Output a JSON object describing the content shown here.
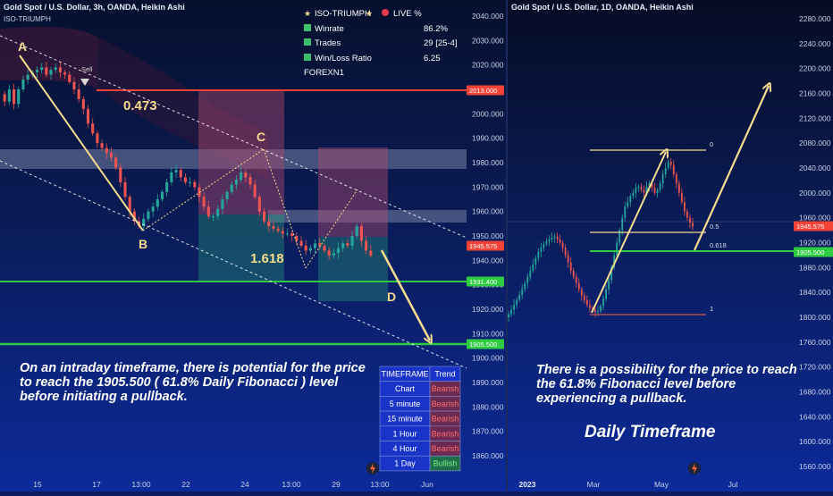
{
  "left": {
    "title": "Gold Spot / U.S. Dollar, 3h, OANDA, Heikin Ashi",
    "indicator": "ISO-TRIUMPH",
    "price_ticks": [
      "2040.000",
      "2030.000",
      "2020.000",
      "2010.000",
      "2000.000",
      "1990.000",
      "1980.000",
      "1970.000",
      "1960.000",
      "1950.000",
      "1940.000",
      "1930.000",
      "1920.000",
      "1910.000",
      "1900.000",
      "1890.000",
      "1880.000",
      "1870.000",
      "1860.000"
    ],
    "date_ticks": [
      "15",
      "17",
      "13:00",
      "22",
      "24",
      "13:00",
      "29",
      "13:00",
      "Jun"
    ],
    "level_tags": [
      {
        "label": "2013.000",
        "color": "#f44336"
      },
      {
        "label": "1945.575",
        "color": "#f44336"
      },
      {
        "label": "1931.400",
        "color": "#2ecc40"
      },
      {
        "label": "1905.500",
        "color": "#2ecc40"
      }
    ],
    "point_labels": [
      "A",
      "B",
      "C",
      "D"
    ],
    "sell_label": "Sell",
    "ratio_upper": "0.473",
    "ratio_lower": "1.618",
    "stats": {
      "header_name": "ISO-TRIUMPH",
      "header_live": "LIVE %",
      "rows": [
        {
          "label": "Winrate",
          "value": "86.2%"
        },
        {
          "label": "Trades",
          "value": "29 [25-4]"
        },
        {
          "label": "Win/Loss Ratio",
          "value": "6.25"
        }
      ],
      "symbol": "FOREXN1"
    },
    "note_lines": [
      "On an intraday timeframe, there is potential for the price",
      "to reach the 1905.500 ( 61.8% Daily Fibonacci  )  level",
      "before initiating a pullback."
    ],
    "trend_table": {
      "headers": [
        "TIMEFRAME",
        "Trend"
      ],
      "rows": [
        {
          "tf": "Chart",
          "trend": "Bearish"
        },
        {
          "tf": "5 minute",
          "trend": "Bearish"
        },
        {
          "tf": "15 minute",
          "trend": "Bearish"
        },
        {
          "tf": "1 Hour",
          "trend": "Bearish"
        },
        {
          "tf": "4 Hour",
          "trend": "Bearish"
        },
        {
          "tf": "1 Day",
          "trend": "Bullish"
        }
      ]
    }
  },
  "right": {
    "title": "Gold Spot / U.S. Dollar, 1D, OANDA, Heikin Ashi",
    "price_ticks": [
      "2280.000",
      "2240.000",
      "2200.000",
      "2160.000",
      "2120.000",
      "2080.000",
      "2040.000",
      "2000.000",
      "1960.000",
      "1920.000",
      "1880.000",
      "1840.000",
      "1800.000",
      "1760.000",
      "1720.000",
      "1680.000",
      "1640.000",
      "1600.000",
      "1560.000"
    ],
    "date_ticks": [
      "2023",
      "Mar",
      "May",
      "Jul"
    ],
    "level_tags": [
      {
        "label": "1945.575",
        "color": "#f44336"
      },
      {
        "label": "1905.500",
        "color": "#2ecc40"
      }
    ],
    "fib_labels": [
      "0",
      "0.5",
      "0.618",
      "1"
    ],
    "note_lines": [
      "There is a possibility for the price to reach",
      "the 61.8% Fibonacci level before",
      "experiencing a pullback."
    ],
    "caption": "Daily Timeframe"
  },
  "chart_data": [
    {
      "type": "candlestick",
      "title": "Gold Spot / U.S. Dollar, 3h, OANDA, Heikin Ashi",
      "ylim": [
        1855,
        2042
      ],
      "levels": [
        2013.0,
        1945.575,
        1931.4,
        1905.5
      ],
      "swing_points": [
        {
          "label": "A",
          "price": 2025
        },
        {
          "label": "B",
          "price": 1953
        },
        {
          "label": "C",
          "price": 1986
        },
        {
          "label": "D",
          "price": 1905.5
        }
      ],
      "close_path": [
        2008,
        2005,
        2010,
        2004,
        2010,
        2014,
        2016,
        2017,
        2018,
        2019,
        2016,
        2018,
        2019,
        2017,
        2016,
        2013,
        2010,
        2006,
        2002,
        1996,
        1992,
        1988,
        1986,
        1984,
        1982,
        1978,
        1972,
        1966,
        1960,
        1956,
        1954,
        1957,
        1960,
        1962,
        1965,
        1968,
        1972,
        1976,
        1977,
        1974,
        1972,
        1972,
        1970,
        1966,
        1962,
        1958,
        1958,
        1961,
        1965,
        1968,
        1971,
        1973,
        1976,
        1974,
        1971,
        1966,
        1960,
        1956,
        1954,
        1953,
        1952,
        1951,
        1951,
        1950,
        1948,
        1946,
        1944,
        1945,
        1947,
        1946,
        1944,
        1942,
        1943,
        1945,
        1947,
        1946,
        1950,
        1954,
        1948,
        1944,
        1942
      ]
    },
    {
      "type": "candlestick",
      "title": "Gold Spot / U.S. Dollar, 1D, OANDA, Heikin Ashi",
      "ylim": [
        1550,
        2300
      ],
      "levels": [
        1945.575,
        1905.5
      ],
      "fib_levels": [
        {
          "label": "0",
          "price": 2067
        },
        {
          "label": "0.5",
          "price": 1936
        },
        {
          "label": "0.618",
          "price": 1905.5
        },
        {
          "label": "1",
          "price": 1805
        }
      ],
      "close_path": [
        1800,
        1805,
        1812,
        1820,
        1828,
        1836,
        1845,
        1855,
        1865,
        1875,
        1885,
        1895,
        1905,
        1912,
        1918,
        1922,
        1925,
        1928,
        1930,
        1925,
        1920,
        1912,
        1900,
        1888,
        1875,
        1865,
        1855,
        1845,
        1835,
        1828,
        1820,
        1815,
        1812,
        1808,
        1810,
        1818,
        1830,
        1845,
        1860,
        1880,
        1900,
        1920,
        1940,
        1960,
        1978,
        1985,
        1995,
        2000,
        2008,
        2010,
        2005,
        2000,
        2010,
        2015,
        2008,
        2000,
        2005,
        2015,
        2030,
        2040,
        2050,
        2045,
        2030,
        2015,
        2000,
        1985,
        1970,
        1960,
        1952,
        1946
      ]
    }
  ]
}
